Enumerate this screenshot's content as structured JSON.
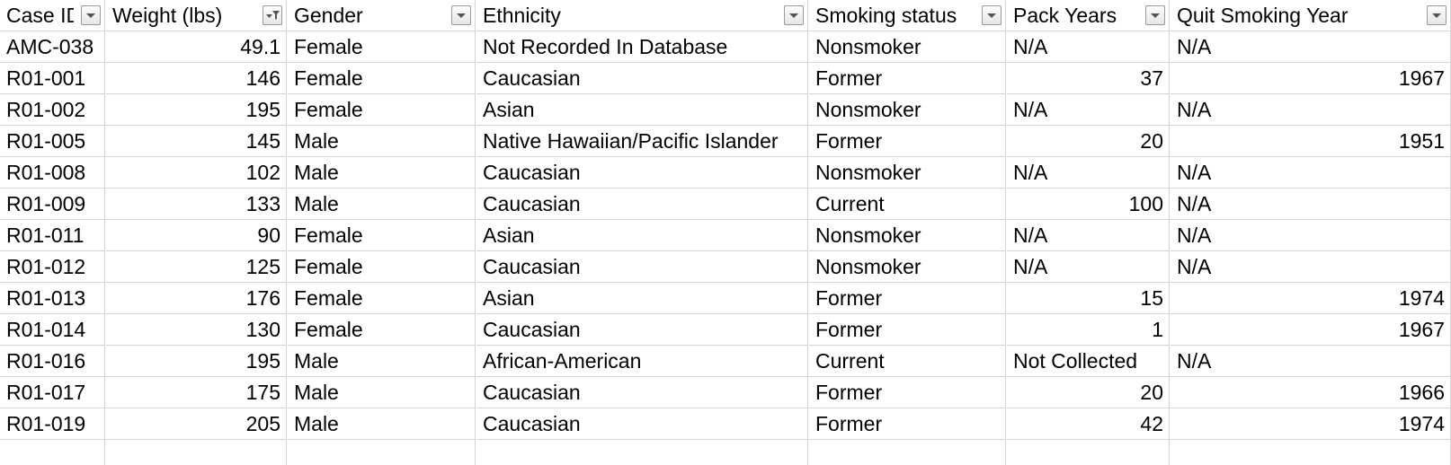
{
  "sheet": {
    "columns": [
      {
        "key": "case_id",
        "label": "Case ID",
        "align": "left",
        "filter_active": false,
        "filter_icon": "chevron-down-icon"
      },
      {
        "key": "weight",
        "label": "Weight (lbs)",
        "align": "right",
        "filter_active": true,
        "filter_icon": "filter-funnel-icon"
      },
      {
        "key": "gender",
        "label": "Gender",
        "align": "left",
        "filter_active": false,
        "filter_icon": "chevron-down-icon"
      },
      {
        "key": "ethnicity",
        "label": "Ethnicity",
        "align": "left",
        "filter_active": false,
        "filter_icon": "chevron-down-icon"
      },
      {
        "key": "smoking_status",
        "label": "Smoking status",
        "align": "left",
        "filter_active": false,
        "filter_icon": "chevron-down-icon"
      },
      {
        "key": "pack_years",
        "label": "Pack Years",
        "align": "right",
        "filter_active": false,
        "filter_icon": "chevron-down-icon"
      },
      {
        "key": "quit_year",
        "label": "Quit Smoking Year",
        "align": "right",
        "filter_active": false,
        "filter_icon": "chevron-down-icon"
      }
    ],
    "rows": [
      [
        "AMC-038",
        "49.1",
        "Female",
        "Not Recorded In Database",
        "Nonsmoker",
        "N/A",
        "N/A"
      ],
      [
        "R01-001",
        "146",
        "Female",
        "Caucasian",
        "Former",
        "37",
        "1967"
      ],
      [
        "R01-002",
        "195",
        "Female",
        "Asian",
        "Nonsmoker",
        "N/A",
        "N/A"
      ],
      [
        "R01-005",
        "145",
        "Male",
        "Native Hawaiian/Pacific Islander",
        "Former",
        "20",
        "1951"
      ],
      [
        "R01-008",
        "102",
        "Male",
        "Caucasian",
        "Nonsmoker",
        "N/A",
        "N/A"
      ],
      [
        "R01-009",
        "133",
        "Male",
        "Caucasian",
        "Current",
        "100",
        "N/A"
      ],
      [
        "R01-011",
        "90",
        "Female",
        "Asian",
        "Nonsmoker",
        "N/A",
        "N/A"
      ],
      [
        "R01-012",
        "125",
        "Female",
        "Caucasian",
        "Nonsmoker",
        "N/A",
        "N/A"
      ],
      [
        "R01-013",
        "176",
        "Female",
        "Asian",
        "Former",
        "15",
        "1974"
      ],
      [
        "R01-014",
        "130",
        "Female",
        "Caucasian",
        "Former",
        "1",
        "1967"
      ],
      [
        "R01-016",
        "195",
        "Male",
        "African-American",
        "Current",
        "Not Collected",
        "N/A"
      ],
      [
        "R01-017",
        "175",
        "Male",
        "Caucasian",
        "Former",
        "20",
        "1966"
      ],
      [
        "R01-019",
        "205",
        "Male",
        "Caucasian",
        "Former",
        "42",
        "1974"
      ]
    ],
    "colors": {
      "gridline": "#d4d4d4",
      "text": "#000000",
      "background": "#ffffff",
      "filter_button_border": "#9a9a9a",
      "filter_icon": "#555555"
    }
  }
}
